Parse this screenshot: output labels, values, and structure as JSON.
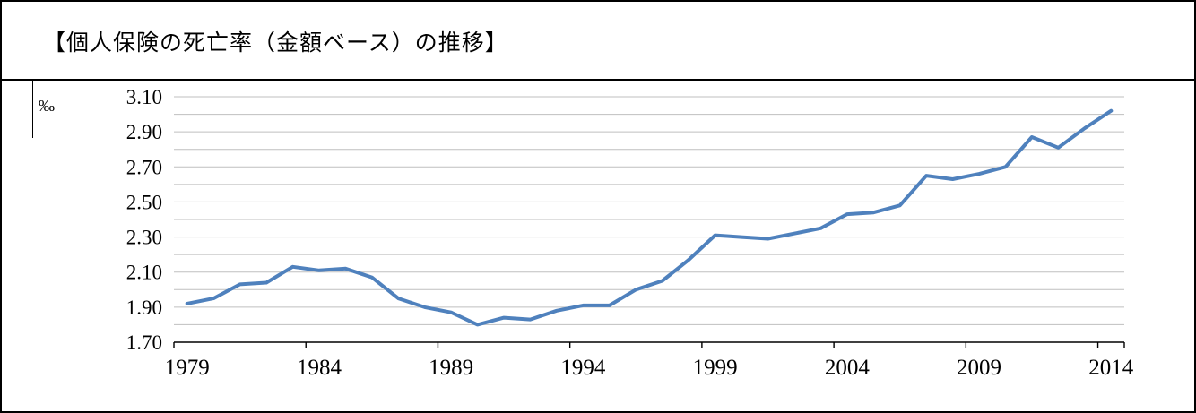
{
  "title": "【個人保険の死亡率（金額ベース）の推移】",
  "chart_data": {
    "type": "line",
    "title": "個人保険の死亡率（金額ベース）の推移",
    "ylabel": "‰",
    "xlabel": "",
    "x": [
      1979,
      1980,
      1981,
      1982,
      1983,
      1984,
      1985,
      1986,
      1987,
      1988,
      1989,
      1990,
      1991,
      1992,
      1993,
      1994,
      1995,
      1996,
      1997,
      1998,
      1999,
      2000,
      2001,
      2002,
      2003,
      2004,
      2005,
      2006,
      2007,
      2008,
      2009,
      2010,
      2011,
      2012,
      2013,
      2014
    ],
    "series": [
      {
        "name": "個人保険の死亡率（金額ベース）",
        "values": [
          1.92,
          1.95,
          2.03,
          2.04,
          2.13,
          2.11,
          2.12,
          2.07,
          1.95,
          1.9,
          1.87,
          1.8,
          1.84,
          1.83,
          1.88,
          1.91,
          1.91,
          2.0,
          2.05,
          2.17,
          2.31,
          2.3,
          2.29,
          2.32,
          2.35,
          2.43,
          2.44,
          2.48,
          2.65,
          2.63,
          2.66,
          2.7,
          2.87,
          2.81,
          2.92,
          3.02
        ]
      }
    ],
    "ylim": [
      1.7,
      3.1
    ],
    "ytick_major": 0.2,
    "ytick_minor": 0.1,
    "ytick_labels": [
      "1.70",
      "1.90",
      "2.10",
      "2.30",
      "2.50",
      "2.70",
      "2.90",
      "3.10"
    ],
    "xticks": [
      1979,
      1984,
      1989,
      1994,
      1999,
      2004,
      2009,
      2014
    ],
    "grid": true,
    "legend_position": "none",
    "line_color": "#4f81bd",
    "grid_color": "#bfbfbf",
    "axis_color": "#000000"
  }
}
